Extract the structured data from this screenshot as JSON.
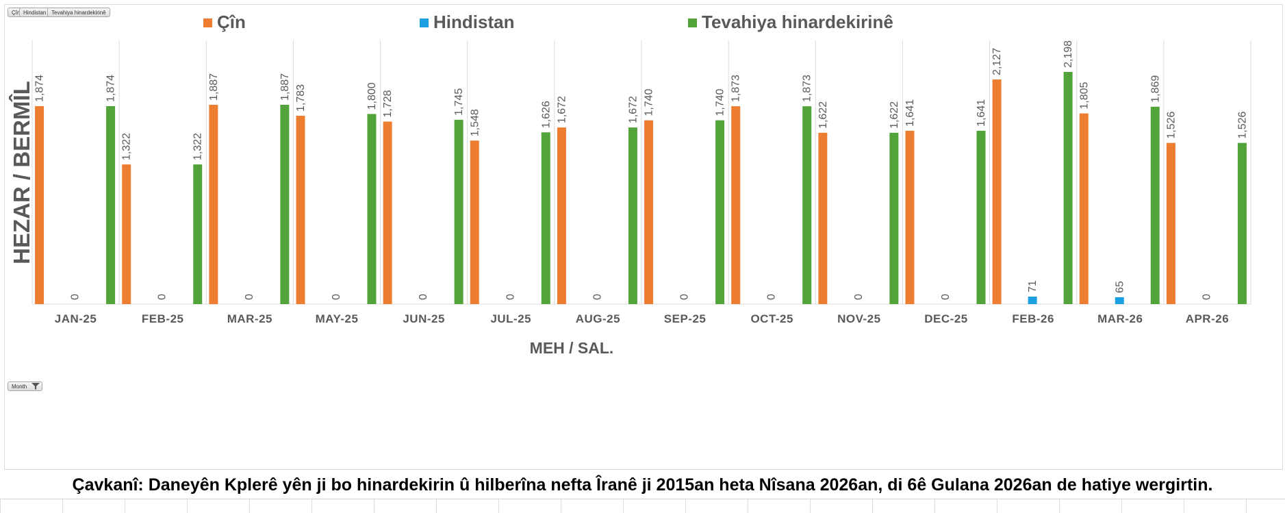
{
  "pivot_buttons": {
    "legend_fields": [
      "Çîn",
      "Hindistan",
      "Tevahiya hinardekirinê"
    ],
    "axis_field": "Month",
    "filter_icon": "funnel-icon"
  },
  "colors": {
    "china": "#ED7D31",
    "india": "#1BA1E2",
    "total": "#52A33A",
    "label_text": "#595959",
    "axis_text": "#595959",
    "gridline": "#d9d9d9"
  },
  "caption": "Çavkanî: Daneyên Kplerê yên ji bo hinardekirin û hilberîna nefta Îranê ji 2015an heta Nîsana 2026an, di 6ê Gulana 2026an de hatiye wergirtin.",
  "chart_data": {
    "type": "bar",
    "title": "",
    "xlabel": "MEH / SAL.",
    "ylabel": "HEZAR / BERMÎL",
    "ylim": [
      0,
      2300
    ],
    "grid": "vertical category separators",
    "legend_position": "top",
    "categories": [
      "JAN-25",
      "FEB-25",
      "MAR-25",
      "MAY-25",
      "JUN-25",
      "JUL-25",
      "AUG-25",
      "SEP-25",
      "OCT-25",
      "NOV-25",
      "DEC-25",
      "FEB-26",
      "MAR-26",
      "APR-26"
    ],
    "series": [
      {
        "name": "Çîn",
        "color": "#ED7D31",
        "values": [
          1874,
          1322,
          1887,
          1783,
          1728,
          1548,
          1672,
          1740,
          1873,
          1622,
          1641,
          2127,
          1805,
          1526
        ]
      },
      {
        "name": "Hindistan",
        "color": "#1BA1E2",
        "values": [
          0,
          0,
          0,
          0,
          0,
          0,
          0,
          0,
          0,
          0,
          0,
          71,
          65,
          0
        ]
      },
      {
        "name": "Tevahiya hinardekirinê",
        "color": "#52A33A",
        "values": [
          1874,
          1322,
          1887,
          1800,
          1745,
          1626,
          1672,
          1740,
          1873,
          1622,
          1641,
          2198,
          1869,
          1526
        ]
      }
    ]
  }
}
